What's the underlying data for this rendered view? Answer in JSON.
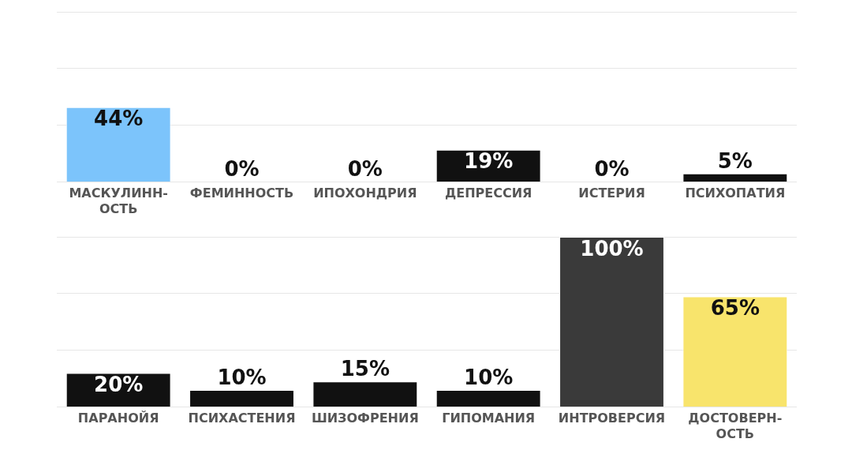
{
  "chart_data": [
    {
      "type": "bar",
      "categories": [
        "МАСКУЛИНН-ОСТЬ",
        "ФЕМИННОСТЬ",
        "ИПОХОНДРИЯ",
        "ДЕПРЕССИЯ",
        "ИСТЕРИЯ",
        "ПСИХОПАТИЯ"
      ],
      "values": [
        44,
        0,
        0,
        19,
        0,
        5
      ],
      "colors": [
        "#7cc4fb",
        "#111111",
        "#111111",
        "#111111",
        "#111111",
        "#111111"
      ],
      "value_labels": [
        "44%",
        "0%",
        "0%",
        "19%",
        "0%",
        "5%"
      ],
      "ylim": [
        0,
        100
      ],
      "yticks": [
        {
          "value": 0,
          "label": null
        },
        {
          "value": 33.3,
          "label": null
        },
        {
          "value": 66.7,
          "label": null
        },
        {
          "value": 100,
          "label": null
        }
      ],
      "grid": "y",
      "tick_labels": "x",
      "legend": false
    },
    {
      "type": "bar",
      "categories": [
        "ПАРАНОЙЯ",
        "ПСИХАСТЕНИЯ",
        "ШИЗОФРЕНИЯ",
        "ГИПОМАНИЯ",
        "ИНТРОВЕРСИЯ",
        "ДОСТОВЕРН-ОСТЬ"
      ],
      "values": [
        20,
        10,
        15,
        10,
        100,
        65
      ],
      "colors": [
        "#111111",
        "#111111",
        "#111111",
        "#111111",
        "#3a3a3a",
        "#f8e46c"
      ],
      "value_labels": [
        "20%",
        "10%",
        "15%",
        "10%",
        "100%",
        "65%"
      ],
      "ylim": [
        0,
        100
      ],
      "yticks": [
        {
          "value": 0,
          "label": null
        },
        {
          "value": 33.3,
          "label": null
        },
        {
          "value": 66.7,
          "label": null
        },
        {
          "value": 100,
          "label": null
        }
      ],
      "grid": "y",
      "tick_labels": "x",
      "legend": false
    }
  ]
}
